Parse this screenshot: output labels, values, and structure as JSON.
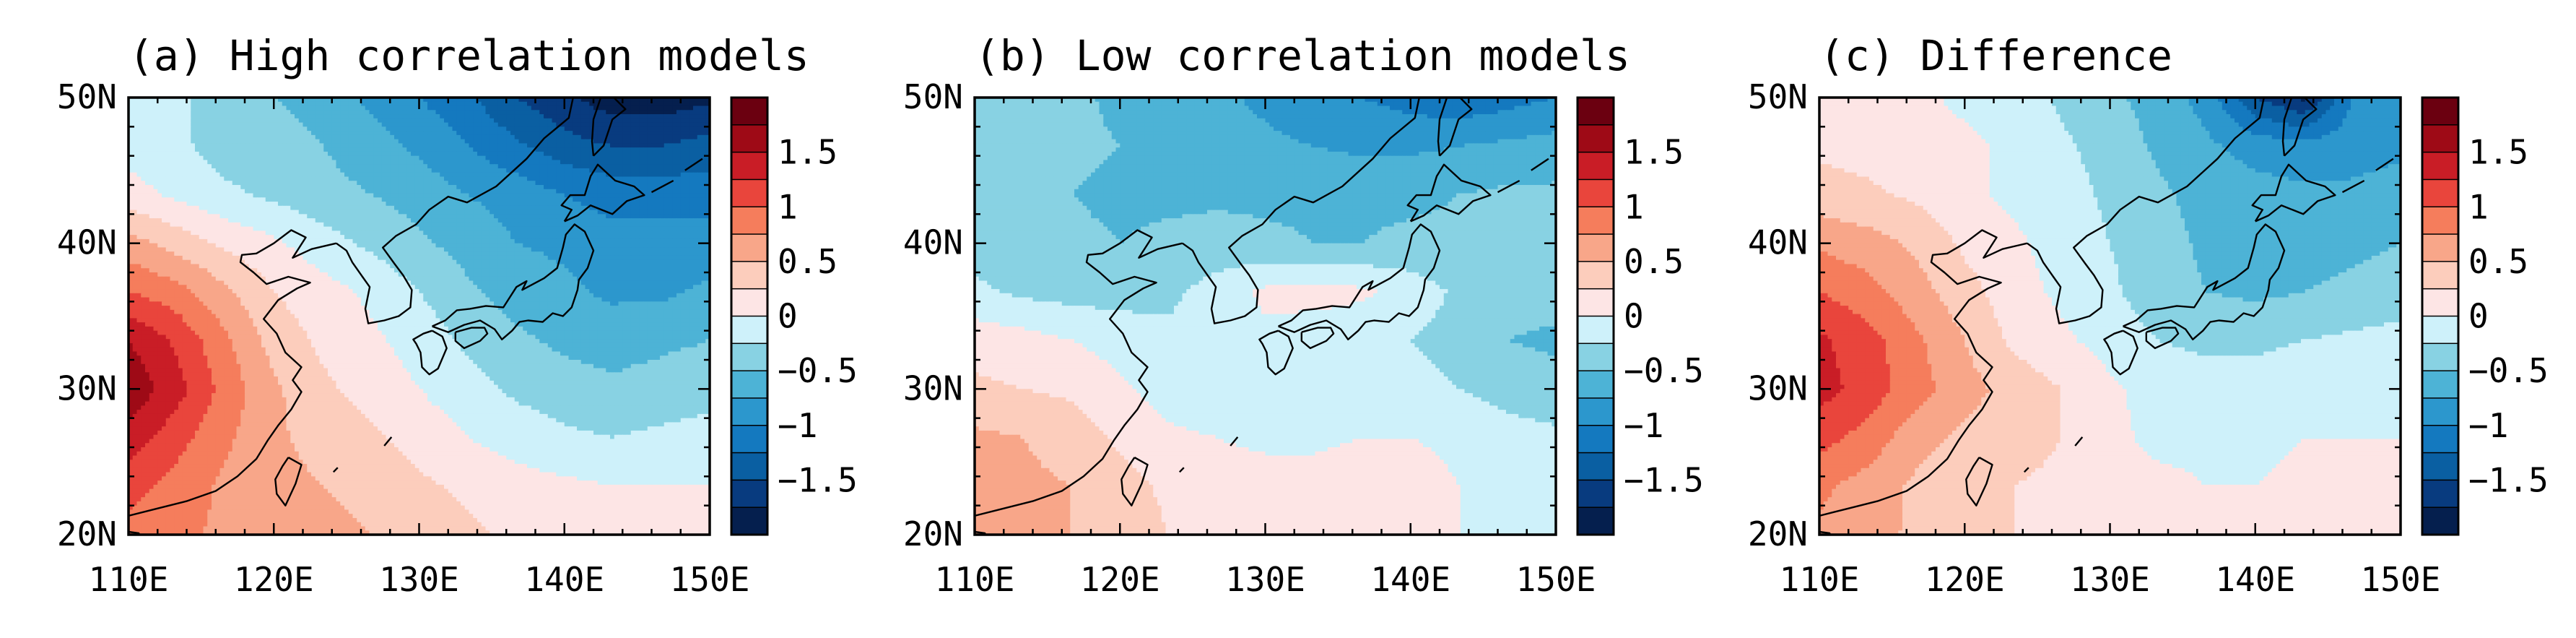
{
  "figure": {
    "description_type": "three-panel filled contour maps over East Asia",
    "panels": [
      {
        "id": "a",
        "title": "(a) High correlation models",
        "field": [
          [
            -0.1,
            -0.2,
            -0.4,
            -0.5,
            -0.6,
            -0.8,
            -1.0,
            -1.2,
            -1.5,
            -1.7,
            -1.9,
            -1.9,
            -1.8
          ],
          [
            -0.1,
            -0.2,
            -0.35,
            -0.4,
            -0.5,
            -0.65,
            -0.8,
            -1.0,
            -1.2,
            -1.4,
            -1.5,
            -1.5,
            -1.4
          ],
          [
            0.1,
            -0.05,
            -0.2,
            -0.3,
            -0.4,
            -0.5,
            -0.6,
            -0.75,
            -0.85,
            -1.0,
            -1.1,
            -1.1,
            -1.1
          ],
          [
            0.6,
            0.4,
            0.2,
            0.05,
            -0.15,
            -0.3,
            -0.45,
            -0.6,
            -0.75,
            -0.8,
            -0.9,
            -0.9,
            -0.9
          ],
          [
            1.0,
            0.85,
            0.55,
            0.25,
            0.1,
            -0.05,
            -0.25,
            -0.45,
            -0.6,
            -0.7,
            -0.8,
            -0.8,
            -0.7
          ],
          [
            1.5,
            1.2,
            0.8,
            0.4,
            0.2,
            0.05,
            -0.1,
            -0.3,
            -0.45,
            -0.55,
            -0.6,
            -0.55,
            -0.5
          ],
          [
            1.7,
            1.35,
            0.9,
            0.55,
            0.3,
            0.15,
            0.0,
            -0.15,
            -0.3,
            -0.4,
            -0.45,
            -0.4,
            -0.35
          ],
          [
            1.4,
            1.1,
            0.8,
            0.55,
            0.4,
            0.3,
            0.15,
            0.0,
            -0.1,
            -0.2,
            -0.25,
            -0.2,
            -0.15
          ],
          [
            1.1,
            0.9,
            0.7,
            0.6,
            0.5,
            0.4,
            0.3,
            0.2,
            0.1,
            0.05,
            0.0,
            0.0,
            0.0
          ],
          [
            0.9,
            0.8,
            0.7,
            0.65,
            0.6,
            0.5,
            0.4,
            0.3,
            0.2,
            0.1,
            0.05,
            0.0,
            0.0
          ]
        ]
      },
      {
        "id": "b",
        "title": "(b) Low correlation models",
        "field": [
          [
            -0.3,
            -0.35,
            -0.45,
            -0.55,
            -0.65,
            -0.7,
            -0.8,
            -0.9,
            -1.0,
            -1.1,
            -1.2,
            -1.1,
            -1.0
          ],
          [
            -0.35,
            -0.4,
            -0.45,
            -0.5,
            -0.6,
            -0.65,
            -0.7,
            -0.75,
            -0.8,
            -0.8,
            -0.75,
            -0.7,
            -0.65
          ],
          [
            -0.4,
            -0.45,
            -0.5,
            -0.55,
            -0.55,
            -0.55,
            -0.55,
            -0.55,
            -0.55,
            -0.55,
            -0.5,
            -0.45,
            -0.45
          ],
          [
            -0.35,
            -0.4,
            -0.45,
            -0.5,
            -0.45,
            -0.4,
            -0.45,
            -0.5,
            -0.5,
            -0.45,
            -0.45,
            -0.4,
            -0.4
          ],
          [
            -0.2,
            -0.3,
            -0.35,
            -0.35,
            -0.3,
            -0.15,
            0.05,
            0.1,
            0.05,
            -0.1,
            -0.3,
            -0.4,
            -0.4
          ],
          [
            0.15,
            0.1,
            0.0,
            -0.1,
            -0.2,
            -0.15,
            -0.05,
            -0.15,
            -0.2,
            -0.25,
            -0.35,
            -0.5,
            -0.55
          ],
          [
            0.3,
            0.25,
            0.2,
            0.05,
            -0.1,
            -0.2,
            -0.25,
            -0.2,
            -0.15,
            -0.15,
            -0.25,
            -0.35,
            -0.4
          ],
          [
            0.55,
            0.5,
            0.4,
            0.2,
            0.05,
            0.0,
            -0.05,
            -0.05,
            0.0,
            0.0,
            -0.05,
            -0.15,
            -0.2
          ],
          [
            0.6,
            0.55,
            0.5,
            0.35,
            0.2,
            0.1,
            0.1,
            0.1,
            0.15,
            0.1,
            0.0,
            -0.05,
            -0.1
          ],
          [
            0.6,
            0.55,
            0.5,
            0.4,
            0.25,
            0.15,
            0.1,
            0.1,
            0.15,
            0.1,
            0.0,
            -0.05,
            -0.1
          ]
        ]
      },
      {
        "id": "c",
        "title": "(c) Difference",
        "field": [
          [
            0.15,
            0.1,
            0.05,
            -0.05,
            -0.1,
            -0.3,
            -0.45,
            -0.6,
            -0.85,
            -1.5,
            -1.8,
            -1.0,
            -0.9
          ],
          [
            0.2,
            0.15,
            0.1,
            0.05,
            -0.05,
            -0.2,
            -0.35,
            -0.55,
            -0.7,
            -0.85,
            -0.9,
            -0.85,
            -0.8
          ],
          [
            0.35,
            0.3,
            0.2,
            0.05,
            -0.05,
            -0.15,
            -0.3,
            -0.45,
            -0.6,
            -0.65,
            -0.7,
            -0.7,
            -0.65
          ],
          [
            0.7,
            0.6,
            0.45,
            0.2,
            0.05,
            -0.1,
            -0.25,
            -0.4,
            -0.55,
            -0.6,
            -0.6,
            -0.55,
            -0.5
          ],
          [
            1.0,
            0.85,
            0.6,
            0.35,
            0.1,
            -0.05,
            -0.2,
            -0.4,
            -0.5,
            -0.55,
            -0.5,
            -0.45,
            -0.4
          ],
          [
            1.3,
            1.1,
            0.8,
            0.5,
            0.2,
            0.05,
            -0.1,
            -0.25,
            -0.3,
            -0.3,
            -0.25,
            -0.2,
            -0.15
          ],
          [
            1.35,
            1.15,
            0.85,
            0.6,
            0.4,
            0.25,
            0.05,
            -0.1,
            -0.15,
            -0.15,
            -0.1,
            -0.1,
            -0.05
          ],
          [
            1.1,
            0.9,
            0.6,
            0.45,
            0.35,
            0.25,
            0.05,
            -0.05,
            -0.05,
            -0.05,
            0.0,
            0.0,
            0.0
          ],
          [
            0.8,
            0.65,
            0.45,
            0.3,
            0.25,
            0.2,
            0.1,
            0.05,
            0.0,
            0.0,
            0.05,
            0.05,
            0.05
          ],
          [
            0.7,
            0.6,
            0.45,
            0.3,
            0.25,
            0.2,
            0.1,
            0.05,
            0.0,
            0.05,
            0.1,
            0.1,
            0.1
          ]
        ]
      }
    ],
    "lon_ticks": [
      "110E",
      "120E",
      "130E",
      "140E",
      "150E"
    ],
    "lat_ticks": [
      "50N",
      "40N",
      "30N",
      "20N"
    ],
    "lon_range": [
      110,
      150
    ],
    "lat_range": [
      20,
      50
    ],
    "colorbar": {
      "labels": [
        "1.5",
        "1",
        "0.5",
        "0",
        "−0.5",
        "−1",
        "−1.5"
      ],
      "levels": [
        -1.75,
        -1.5,
        -1.25,
        -1.0,
        -0.75,
        -0.5,
        -0.25,
        0.0,
        0.25,
        0.5,
        0.75,
        1.0,
        1.25,
        1.5,
        1.75
      ],
      "colors": [
        "#051f4e",
        "#083b7f",
        "#0a5fa2",
        "#1479bf",
        "#2c97cd",
        "#4db3d6",
        "#88d2e3",
        "#cef1fa",
        "#fde5e5",
        "#fccdbc",
        "#f8a689",
        "#f57d5c",
        "#e9453c",
        "#c91d26",
        "#9e0a16",
        "#6b0010"
      ]
    }
  }
}
